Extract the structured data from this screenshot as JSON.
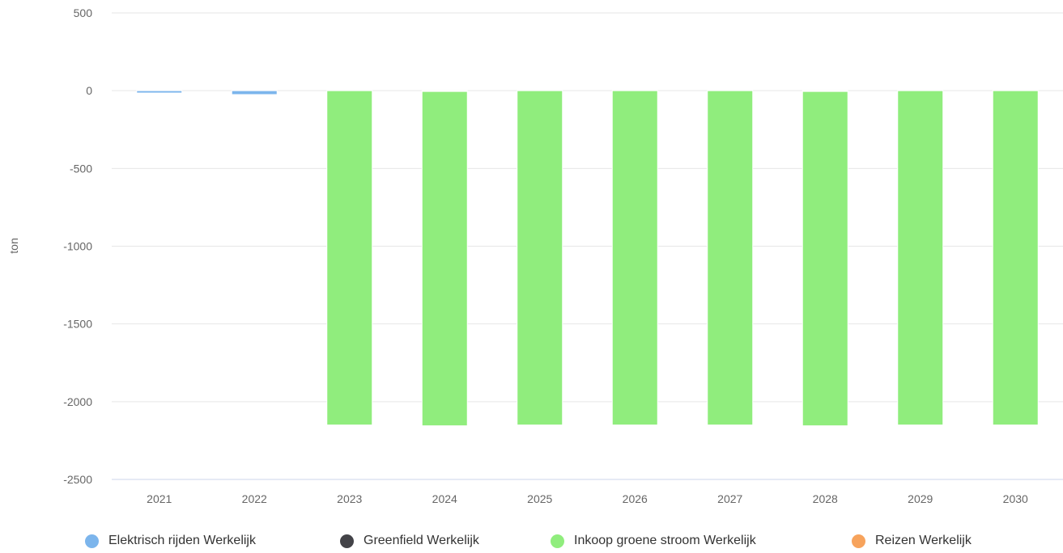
{
  "chart_data": {
    "type": "bar",
    "stacked": true,
    "categories": [
      "2021",
      "2022",
      "2023",
      "2024",
      "2025",
      "2026",
      "2027",
      "2028",
      "2029",
      "2030"
    ],
    "ylabel": "ton",
    "ylim": [
      -2500,
      500
    ],
    "yticks": [
      500,
      0,
      -500,
      -1000,
      -1500,
      -2000,
      -2500
    ],
    "grid": true,
    "legend_position": "bottom",
    "series": [
      {
        "name": "Elektrisch rijden Werkelijk",
        "color": "#7cb5ec",
        "values": [
          -15,
          -25,
          0,
          -5,
          0,
          0,
          0,
          -5,
          0,
          0
        ]
      },
      {
        "name": "Greenfield Werkelijk",
        "color": "#434348",
        "values": [
          0,
          0,
          0,
          0,
          0,
          0,
          0,
          0,
          0,
          0
        ]
      },
      {
        "name": "Inkoop groene stroom Werkelijk",
        "color": "#90ed7d",
        "values": [
          0,
          0,
          -2150,
          -2150,
          -2150,
          -2150,
          -2150,
          -2150,
          -2150,
          -2150
        ]
      },
      {
        "name": "Reizen Werkelijk",
        "color": "#f7a35c",
        "values": [
          0,
          0,
          0,
          0,
          0,
          0,
          0,
          0,
          0,
          0
        ]
      }
    ]
  }
}
